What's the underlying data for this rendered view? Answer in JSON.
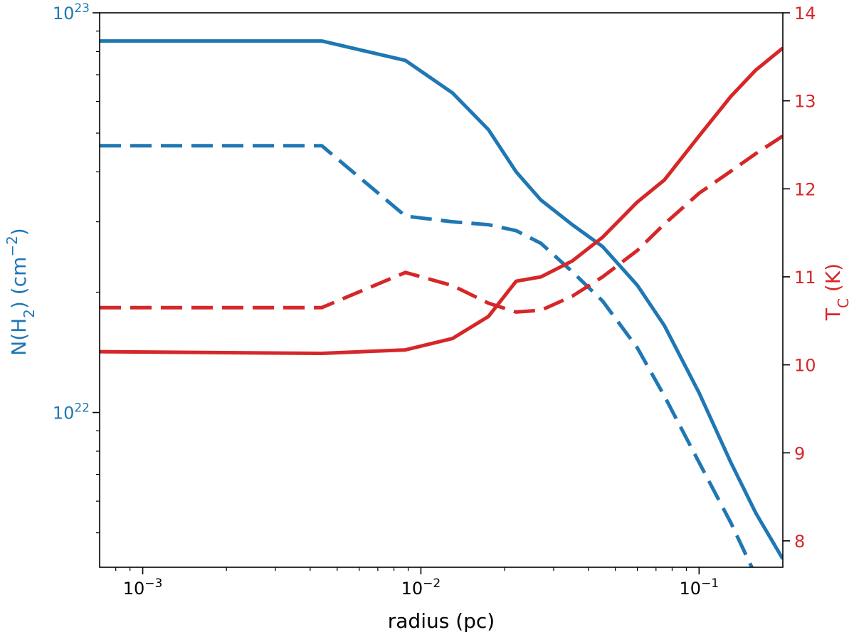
{
  "chart_data": {
    "type": "line",
    "xlabel": "radius (pc)",
    "ylabel_left": "N(H₂) (cm⁻²)",
    "ylabel_right": "T_C (K)",
    "x_scale": "log",
    "y_left_scale": "log",
    "y_right_scale": "linear",
    "xlim": [
      0.0007,
      0.2
    ],
    "ylim_left": [
      4.1e+21,
      1e+23
    ],
    "ylim_right": [
      7.7,
      14
    ],
    "x_ticks": [
      {
        "value": 0.001,
        "base": "10",
        "exp": "−3"
      },
      {
        "value": 0.01,
        "base": "10",
        "exp": "−2"
      },
      {
        "value": 0.1,
        "base": "10",
        "exp": "−1"
      }
    ],
    "y_left_ticks": [
      {
        "value": 1e+22,
        "base": "10",
        "exp": "22"
      },
      {
        "value": 1e+23,
        "base": "10",
        "exp": "23"
      }
    ],
    "y_right_ticks": [
      8,
      9,
      10,
      11,
      12,
      13,
      14
    ],
    "colors": {
      "left": "#1f77b4",
      "right": "#d62728"
    },
    "series": [
      {
        "axis": "left",
        "style": "solid",
        "color": "#1f77b4",
        "x": [
          0.0007,
          0.0044,
          0.0088,
          0.013,
          0.0175,
          0.022,
          0.027,
          0.035,
          0.045,
          0.06,
          0.075,
          0.1,
          0.13,
          0.16,
          0.2
        ],
        "y": [
          8.5e+22,
          8.5e+22,
          7.6e+22,
          6.3e+22,
          5.1e+22,
          4e+22,
          3.4e+22,
          2.95e+22,
          2.6e+22,
          2.08e+22,
          1.65e+22,
          1.12e+22,
          7.5e+21,
          5.6e+21,
          4.3e+21
        ]
      },
      {
        "axis": "left",
        "style": "dashed",
        "color": "#1f77b4",
        "x": [
          0.0007,
          0.0044,
          0.0088,
          0.013,
          0.0175,
          0.022,
          0.027,
          0.035,
          0.045,
          0.06,
          0.075,
          0.1,
          0.13,
          0.16
        ],
        "y": [
          4.65e+22,
          4.65e+22,
          3.1e+22,
          3e+22,
          2.95e+22,
          2.85e+22,
          2.65e+22,
          2.25e+22,
          1.9e+22,
          1.45e+22,
          1.1e+22,
          7.5e+21,
          5.3e+21,
          3.9e+21
        ]
      },
      {
        "axis": "right",
        "style": "solid",
        "color": "#d62728",
        "x": [
          0.0007,
          0.0044,
          0.0088,
          0.013,
          0.0175,
          0.022,
          0.027,
          0.035,
          0.045,
          0.06,
          0.075,
          0.1,
          0.13,
          0.16,
          0.2
        ],
        "y": [
          10.15,
          10.13,
          10.17,
          10.3,
          10.55,
          10.95,
          11.0,
          11.18,
          11.45,
          11.85,
          12.1,
          12.6,
          13.05,
          13.35,
          13.6
        ]
      },
      {
        "axis": "right",
        "style": "dashed",
        "color": "#d62728",
        "x": [
          0.0007,
          0.0044,
          0.0088,
          0.013,
          0.0175,
          0.022,
          0.027,
          0.035,
          0.045,
          0.06,
          0.075,
          0.1,
          0.13,
          0.16,
          0.2
        ],
        "y": [
          10.65,
          10.65,
          11.05,
          10.9,
          10.7,
          10.6,
          10.62,
          10.78,
          11.0,
          11.3,
          11.6,
          11.95,
          12.2,
          12.4,
          12.6
        ]
      }
    ]
  }
}
